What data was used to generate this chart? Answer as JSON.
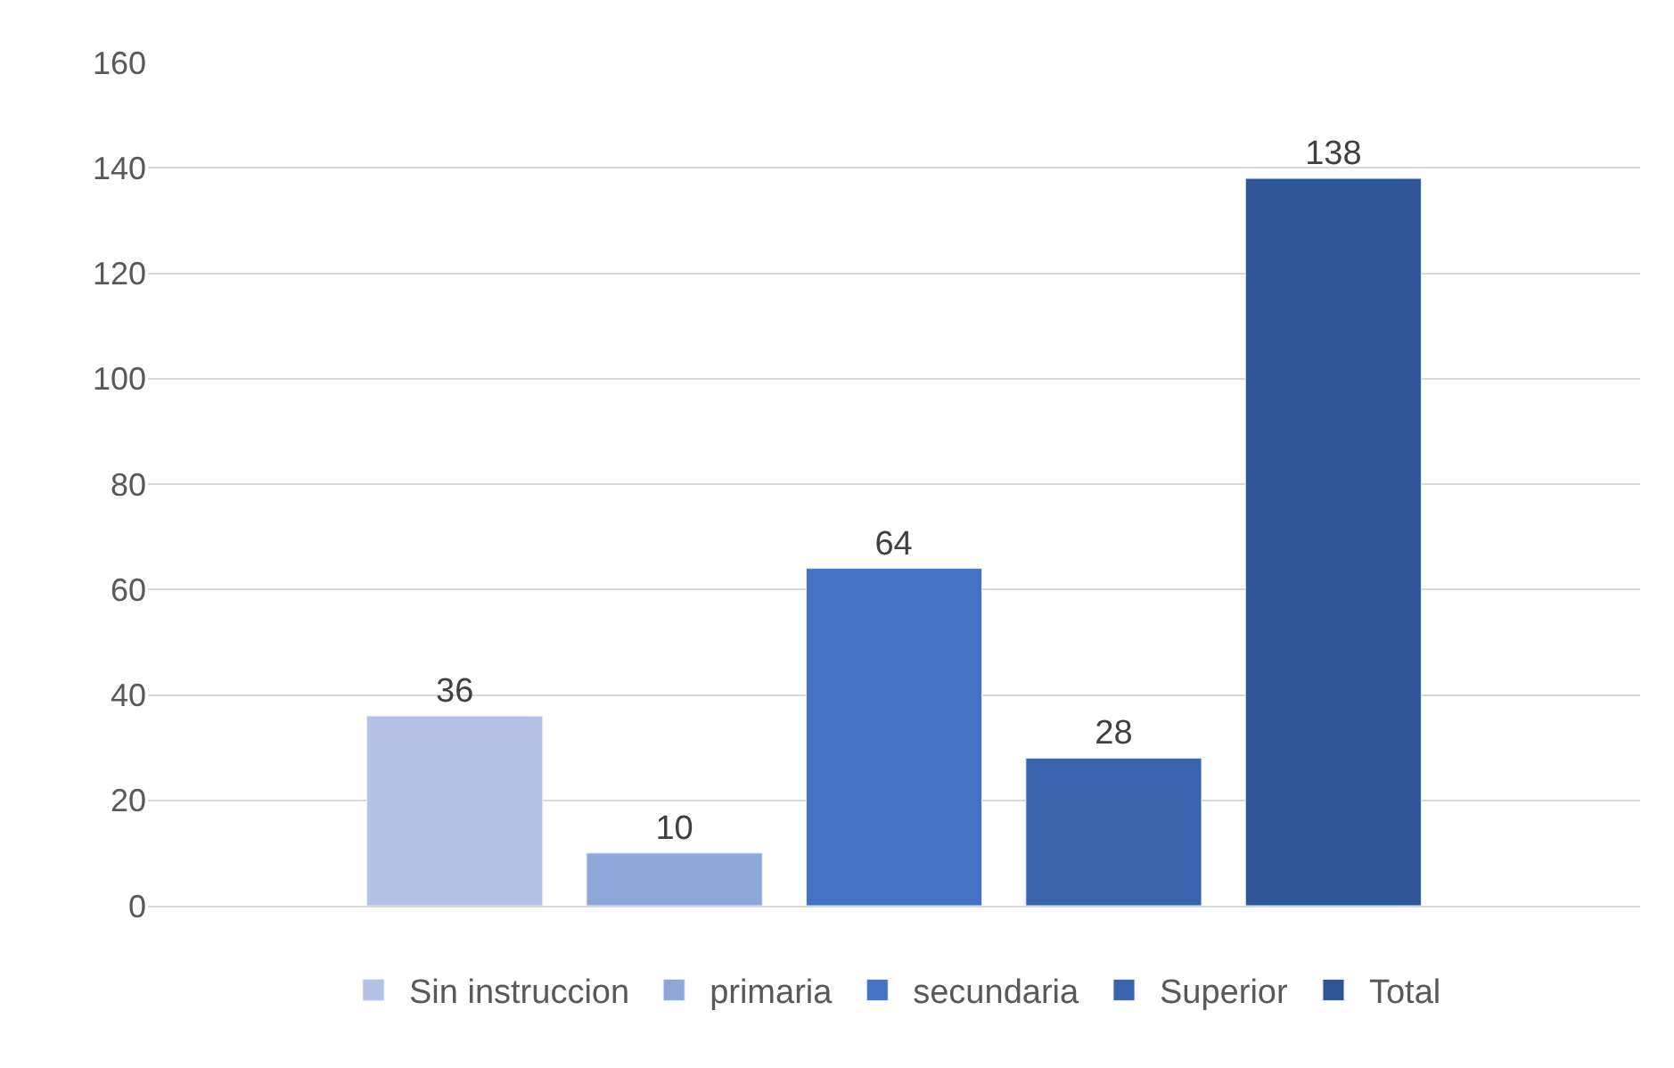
{
  "chart_data": {
    "type": "bar",
    "categories": [
      null
    ],
    "series": [
      {
        "name": "Sin instruccion",
        "color": "#b4c0e4",
        "values": [
          36
        ]
      },
      {
        "name": "primaria",
        "color": "#8fa6d8",
        "values": [
          10
        ]
      },
      {
        "name": "secundaria",
        "color": "#4472c4",
        "values": [
          64
        ]
      },
      {
        "name": "Superior",
        "color": "#3a63ae",
        "values": [
          28
        ]
      },
      {
        "name": "Total",
        "color": "#2f5597",
        "values": [
          138
        ]
      }
    ],
    "ylim": [
      0,
      160
    ],
    "yticks": [
      0,
      20,
      40,
      60,
      80,
      100,
      120,
      140,
      160
    ],
    "grid": "y",
    "legend": "bottom",
    "data_labels": true
  }
}
